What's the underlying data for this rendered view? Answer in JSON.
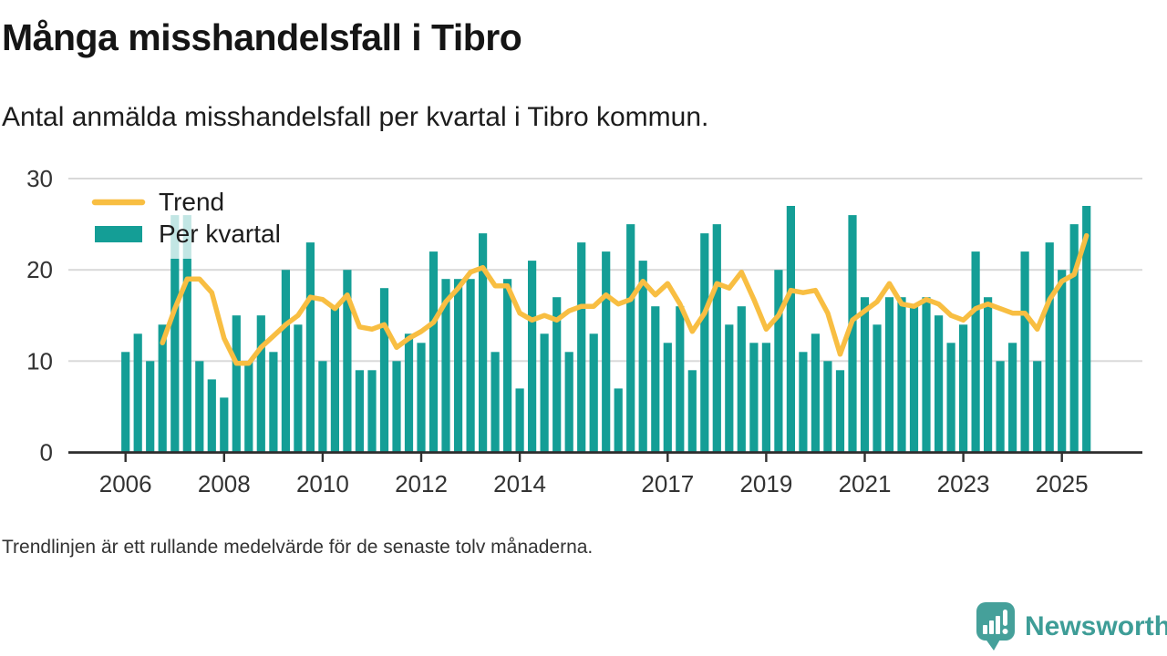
{
  "header": {
    "title": "Många misshandelsfall i Tibro",
    "subtitle": "Antal anmälda misshandelsfall per kvartal i Tibro kommun."
  },
  "legend": {
    "trend_label": "Trend",
    "bars_label": "Per kvartal"
  },
  "footnote": "Trendlinjen är ett rullande medelvärde för de senaste tolv månaderna.",
  "brand": {
    "name": "Newsworthy",
    "logo_icon": "bar-chart-speech-bubble-icon"
  },
  "colors": {
    "bar": "#149E96",
    "trend": "#F8BE42",
    "grid": "#D9D9D9",
    "axis": "#2F2F2F",
    "tick_label": "#333333",
    "brand_teal": "#45A09A",
    "brand_text": "#3E9D97",
    "legend_bg": "#FFFFFF"
  },
  "chart_data": {
    "type": "bar",
    "title": "Antal anmälda misshandelsfall per kvartal i Tibro kommun",
    "frequency": "quarterly",
    "start": "2006 Q1",
    "end": "2025 Q3",
    "categories_note": "79 quarters from 2006Q1 through 2025Q3",
    "series": [
      {
        "name": "Per kvartal",
        "values": [
          11,
          13,
          10,
          14,
          26,
          26,
          10,
          8,
          6,
          15,
          10,
          15,
          11,
          20,
          14,
          23,
          10,
          16,
          20,
          9,
          9,
          18,
          10,
          13,
          12,
          22,
          19,
          19,
          19,
          24,
          11,
          19,
          7,
          21,
          13,
          17,
          11,
          23,
          13,
          22,
          7,
          25,
          21,
          16,
          12,
          16,
          9,
          24,
          25,
          14,
          16,
          12,
          12,
          20,
          27,
          11,
          13,
          10,
          9,
          26,
          17,
          14,
          17,
          17,
          16,
          17,
          15,
          12,
          14,
          22,
          17,
          10,
          12,
          22,
          10,
          23,
          20,
          25,
          27
        ]
      }
    ],
    "trend": {
      "name": "Trend",
      "method": "rullande medelvärde för de senaste tolv månaderna (trailing mean of 4 quarters)",
      "window": 4
    },
    "x_ticks": [
      {
        "label": "2006",
        "index": 0
      },
      {
        "label": "2008",
        "index": 8
      },
      {
        "label": "2010",
        "index": 16
      },
      {
        "label": "2012",
        "index": 24
      },
      {
        "label": "2014",
        "index": 32
      },
      {
        "label": "2017",
        "index": 44
      },
      {
        "label": "2019",
        "index": 52
      },
      {
        "label": "2021",
        "index": 60
      },
      {
        "label": "2023",
        "index": 68
      },
      {
        "label": "2025",
        "index": 76
      }
    ],
    "yticks": [
      0,
      10,
      20,
      30
    ],
    "ylim": [
      0,
      30
    ],
    "grid": "horizontal",
    "legend_position": "top-left-inside"
  }
}
